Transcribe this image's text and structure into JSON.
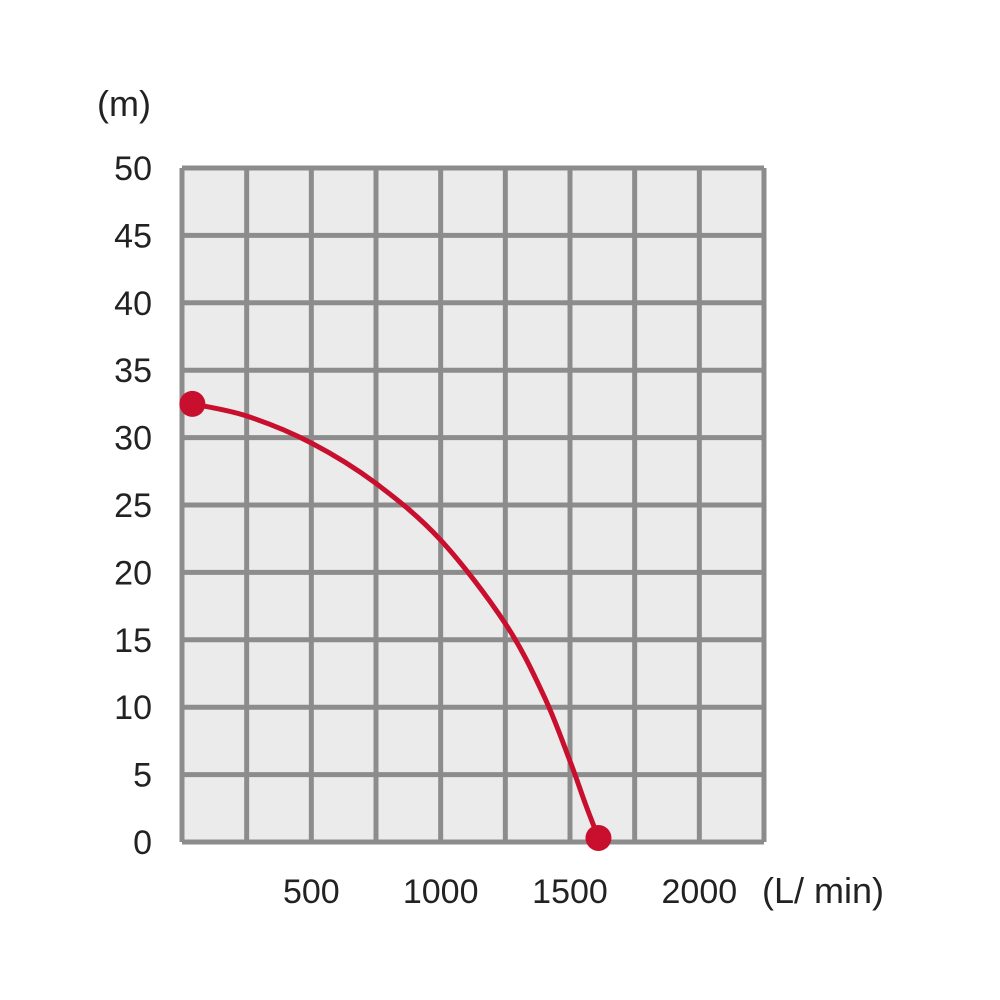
{
  "chart_data": {
    "type": "line",
    "title": "",
    "xlabel": "(L/ min)",
    "ylabel": "(m)",
    "xlim": [
      0,
      2250
    ],
    "ylim": [
      0,
      50
    ],
    "x_ticks": [
      500,
      1000,
      1500,
      2000
    ],
    "x_tick_labels": [
      "500",
      "1000",
      "1500",
      "2000"
    ],
    "y_ticks": [
      0,
      5,
      10,
      15,
      20,
      25,
      30,
      35,
      40,
      45,
      50
    ],
    "y_tick_labels": [
      "0",
      "5",
      "10",
      "15",
      "20",
      "25",
      "30",
      "35",
      "40",
      "45",
      "50"
    ],
    "grid": true,
    "legend": "none",
    "series": [
      {
        "x": [
          40,
          250,
          500,
          750,
          1000,
          1250,
          1400,
          1500,
          1560,
          1610
        ],
        "y": [
          32.5,
          31.6,
          29.6,
          26.6,
          22.4,
          16.2,
          10.8,
          6.0,
          2.8,
          0.3
        ],
        "endpoints": [
          [
            40,
            32.5
          ],
          [
            1610,
            0.3
          ]
        ]
      }
    ],
    "colors": {
      "plot_background": "#ebebeb",
      "grid": "#8c8c8c",
      "curve": "#c8102e",
      "text": "#222222"
    }
  }
}
